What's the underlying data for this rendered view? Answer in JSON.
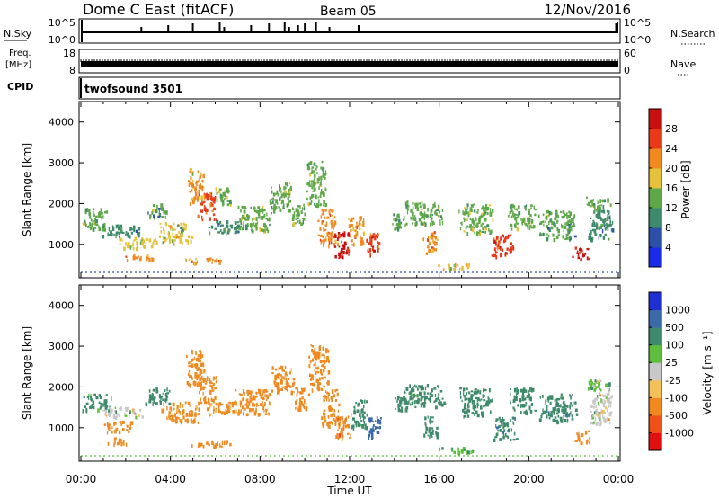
{
  "header": {
    "station": "Dome C East (fitACF)",
    "beam": "Beam 05",
    "date": "12/Nov/2016"
  },
  "strips": {
    "nsky_label": "N.Sky",
    "nsky_ticks": [
      "10^5",
      "10^0"
    ],
    "nsearch_label": "N.Search",
    "nsearch_ticks": [
      "10^5",
      "10^0"
    ],
    "freq_label_1": "Freq.",
    "freq_label_2": "[MHz]",
    "freq_ticks": [
      "18",
      "8"
    ],
    "nave_label": "Nave",
    "nave_ticks": [
      "60",
      "0"
    ],
    "cpid_label": "CPID",
    "cpid_value": "twofsound 3501"
  },
  "chart_data": [
    {
      "type": "heatmap",
      "title": "Power",
      "ylabel": "Slant Range [km]",
      "xlabel": "",
      "ylim": [
        180,
        4500
      ],
      "yticks": [
        "1000",
        "2000",
        "3000",
        "4000"
      ],
      "xlim": [
        0,
        24
      ],
      "colorbar": {
        "label": "Power [dB]",
        "ticks": [
          "4",
          "8",
          "12",
          "16",
          "20",
          "24",
          "28"
        ],
        "range": [
          0,
          32
        ],
        "colors": [
          "#1a2be8",
          "#2c4fa8",
          "#3f8a6a",
          "#5fa84a",
          "#e6c23a",
          "#f08a20",
          "#e83a18",
          "#c81010"
        ]
      },
      "patches": [
        {
          "t": 0.6,
          "r": 1650,
          "w": 1.3,
          "h": 500,
          "v": 13
        },
        {
          "t": 1.8,
          "r": 1350,
          "w": 1.8,
          "h": 300,
          "v": 10
        },
        {
          "t": 2.5,
          "r": 1050,
          "w": 2.0,
          "h": 260,
          "v": 17
        },
        {
          "t": 2.6,
          "r": 700,
          "w": 1.4,
          "h": 150,
          "v": 22
        },
        {
          "t": 3.4,
          "r": 1850,
          "w": 1.0,
          "h": 320,
          "v": 12
        },
        {
          "t": 4.2,
          "r": 1300,
          "w": 1.6,
          "h": 520,
          "v": 16
        },
        {
          "t": 5.1,
          "r": 2450,
          "w": 0.8,
          "h": 850,
          "v": 20
        },
        {
          "t": 5.6,
          "r": 1950,
          "w": 0.9,
          "h": 650,
          "v": 25
        },
        {
          "t": 6.3,
          "r": 2200,
          "w": 0.8,
          "h": 450,
          "v": 14
        },
        {
          "t": 6.5,
          "r": 1450,
          "w": 2.0,
          "h": 280,
          "v": 11
        },
        {
          "t": 7.7,
          "r": 1650,
          "w": 1.7,
          "h": 600,
          "v": 15
        },
        {
          "t": 5.6,
          "r": 620,
          "w": 2.2,
          "h": 120,
          "v": 21
        },
        {
          "t": 8.9,
          "r": 2200,
          "w": 1.1,
          "h": 700,
          "v": 13
        },
        {
          "t": 9.7,
          "r": 1750,
          "w": 0.8,
          "h": 520,
          "v": 14
        },
        {
          "t": 10.5,
          "r": 2500,
          "w": 1.0,
          "h": 1100,
          "v": 13
        },
        {
          "t": 11.0,
          "r": 1450,
          "w": 0.9,
          "h": 900,
          "v": 22
        },
        {
          "t": 11.6,
          "r": 1000,
          "w": 0.8,
          "h": 650,
          "v": 28
        },
        {
          "t": 12.3,
          "r": 1350,
          "w": 0.8,
          "h": 700,
          "v": 21
        },
        {
          "t": 13.0,
          "r": 1050,
          "w": 0.7,
          "h": 550,
          "v": 26
        },
        {
          "t": 14.2,
          "r": 1600,
          "w": 0.8,
          "h": 400,
          "v": 12
        },
        {
          "t": 15.3,
          "r": 1800,
          "w": 2.0,
          "h": 550,
          "v": 13
        },
        {
          "t": 15.6,
          "r": 1050,
          "w": 0.7,
          "h": 550,
          "v": 22
        },
        {
          "t": 16.7,
          "r": 470,
          "w": 1.8,
          "h": 140,
          "v": 17
        },
        {
          "t": 17.6,
          "r": 1650,
          "w": 1.6,
          "h": 700,
          "v": 15
        },
        {
          "t": 18.8,
          "r": 1000,
          "w": 1.1,
          "h": 550,
          "v": 26
        },
        {
          "t": 19.7,
          "r": 1700,
          "w": 1.3,
          "h": 600,
          "v": 14
        },
        {
          "t": 21.3,
          "r": 1500,
          "w": 1.8,
          "h": 700,
          "v": 12
        },
        {
          "t": 22.3,
          "r": 800,
          "w": 0.8,
          "h": 300,
          "v": 28
        },
        {
          "t": 23.2,
          "r": 1500,
          "w": 1.2,
          "h": 750,
          "v": 10
        },
        {
          "t": 23.1,
          "r": 2050,
          "w": 1.3,
          "h": 280,
          "v": 13
        }
      ]
    },
    {
      "type": "heatmap",
      "title": "Velocity",
      "ylabel": "Slant Range [km]",
      "xlabel": "Time UT",
      "ylim": [
        180,
        4500
      ],
      "yticks": [
        "1000",
        "2000",
        "3000",
        "4000"
      ],
      "xlim": [
        0,
        24
      ],
      "xticks": [
        "00:00",
        "04:00",
        "08:00",
        "12:00",
        "16:00",
        "20:00",
        "00:00"
      ],
      "colorbar": {
        "label": "Velocity [m s⁻¹]",
        "ticks": [
          "-1000",
          "-500",
          "-100",
          "-25",
          "25",
          "100",
          "500",
          "1000"
        ],
        "range": [
          -1500,
          1500
        ],
        "colors": [
          "#e01010",
          "#ef5018",
          "#f08a20",
          "#f3c05a",
          "#c8c8c8",
          "#5fbf3c",
          "#3f8a6a",
          "#3a6aa8",
          "#2030d0"
        ]
      },
      "patches": [
        {
          "t": 0.7,
          "r": 1650,
          "w": 1.4,
          "h": 400,
          "v": 220
        },
        {
          "t": 1.8,
          "r": 1400,
          "w": 2.0,
          "h": 250,
          "v": 0
        },
        {
          "t": 1.7,
          "r": 1050,
          "w": 1.6,
          "h": 250,
          "v": -300
        },
        {
          "t": 1.6,
          "r": 700,
          "w": 1.0,
          "h": 150,
          "v": -250
        },
        {
          "t": 3.4,
          "r": 1800,
          "w": 1.2,
          "h": 400,
          "v": 260
        },
        {
          "t": 4.4,
          "r": 1400,
          "w": 1.8,
          "h": 500,
          "v": -200
        },
        {
          "t": 5.1,
          "r": 2500,
          "w": 0.9,
          "h": 850,
          "v": -350
        },
        {
          "t": 5.6,
          "r": 1950,
          "w": 0.9,
          "h": 650,
          "v": -300
        },
        {
          "t": 6.4,
          "r": 1500,
          "w": 2.0,
          "h": 300,
          "v": -150
        },
        {
          "t": 7.7,
          "r": 1650,
          "w": 1.8,
          "h": 600,
          "v": -250
        },
        {
          "t": 5.7,
          "r": 620,
          "w": 2.2,
          "h": 120,
          "v": -200
        },
        {
          "t": 9.0,
          "r": 2200,
          "w": 1.1,
          "h": 700,
          "v": -200
        },
        {
          "t": 9.8,
          "r": 1750,
          "w": 0.8,
          "h": 520,
          "v": -150
        },
        {
          "t": 10.6,
          "r": 2500,
          "w": 1.0,
          "h": 1100,
          "v": -250
        },
        {
          "t": 11.1,
          "r": 1500,
          "w": 0.9,
          "h": 900,
          "v": -300
        },
        {
          "t": 11.7,
          "r": 1000,
          "w": 0.7,
          "h": 600,
          "v": -400
        },
        {
          "t": 12.4,
          "r": 1350,
          "w": 0.8,
          "h": 700,
          "v": 200
        },
        {
          "t": 13.1,
          "r": 1050,
          "w": 0.7,
          "h": 550,
          "v": 700
        },
        {
          "t": 14.3,
          "r": 1600,
          "w": 0.8,
          "h": 400,
          "v": 150
        },
        {
          "t": 15.3,
          "r": 1800,
          "w": 2.0,
          "h": 550,
          "v": 200
        },
        {
          "t": 15.6,
          "r": 1050,
          "w": 0.7,
          "h": 500,
          "v": 300
        },
        {
          "t": 16.8,
          "r": 470,
          "w": 1.8,
          "h": 140,
          "v": 90
        },
        {
          "t": 17.6,
          "r": 1650,
          "w": 1.6,
          "h": 700,
          "v": 300
        },
        {
          "t": 18.9,
          "r": 1000,
          "w": 1.1,
          "h": 550,
          "v": 450
        },
        {
          "t": 19.7,
          "r": 1700,
          "w": 1.3,
          "h": 600,
          "v": 300
        },
        {
          "t": 21.3,
          "r": 1500,
          "w": 1.8,
          "h": 700,
          "v": 400
        },
        {
          "t": 22.4,
          "r": 800,
          "w": 0.8,
          "h": 300,
          "v": -300
        },
        {
          "t": 23.2,
          "r": 1500,
          "w": 1.2,
          "h": 750,
          "v": 0
        },
        {
          "t": 23.1,
          "r": 2050,
          "w": 1.3,
          "h": 280,
          "v": 40
        }
      ]
    }
  ]
}
